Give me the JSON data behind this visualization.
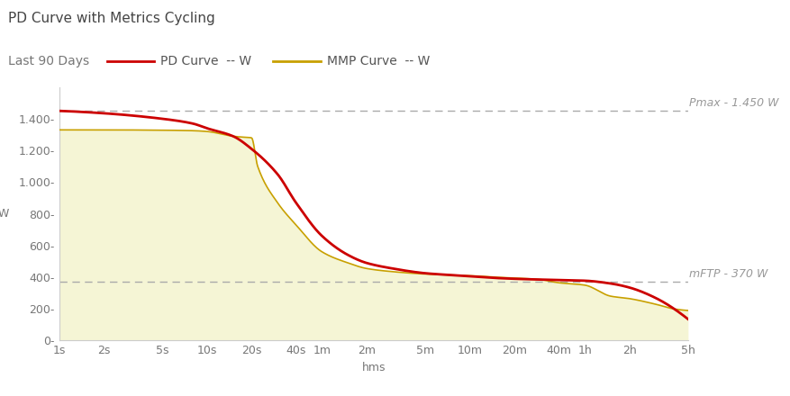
{
  "title": "PD Curve with Metrics Cycling",
  "subtitle": "Last 90 Days",
  "legend_pd": "PD Curve  -- W",
  "legend_mmp": "MMP Curve  -- W",
  "xlabel": "hms",
  "ylabel": "W",
  "pmax_label": "Pmax - 1.450 W",
  "pmax_value": 1450,
  "mftp_label": "mFTP - 370 W",
  "mftp_value": 370,
  "ylim": [
    0,
    1600
  ],
  "yticks": [
    0,
    200,
    400,
    600,
    800,
    1000,
    1200,
    1400
  ],
  "ytick_labels": [
    "0-",
    "200-",
    "400-",
    "600-",
    "800-",
    "1.000-",
    "1.200-",
    "1.400-"
  ],
  "xtick_positions": [
    1,
    2,
    5,
    10,
    20,
    40,
    60,
    120,
    300,
    600,
    1200,
    2400,
    3600,
    7200,
    18000
  ],
  "xtick_labels": [
    "1s",
    "2s",
    "5s",
    "10s",
    "20s",
    "40s",
    "1m",
    "2m",
    "5m",
    "10m",
    "20m",
    "40m",
    "1h",
    "2h",
    "5h"
  ],
  "pd_color": "#cc0000",
  "mmp_color": "#c8a000",
  "fill_color": "#f5f5d5",
  "pmax_line_color": "#aaaaaa",
  "mftp_line_color": "#aaaaaa",
  "background_color": "#ffffff",
  "title_fontsize": 11,
  "subtitle_fontsize": 10,
  "label_fontsize": 9,
  "tick_fontsize": 9,
  "annotation_fontsize": 9,
  "t_pd": [
    1,
    2,
    5,
    8,
    10,
    15,
    20,
    30,
    40,
    60,
    90,
    120,
    180,
    300,
    420,
    600,
    900,
    1200,
    1800,
    2400,
    3600,
    5400,
    7200,
    10800,
    18000
  ],
  "pd_vals": [
    1450,
    1435,
    1400,
    1370,
    1340,
    1290,
    1210,
    1050,
    870,
    660,
    540,
    490,
    455,
    425,
    415,
    405,
    395,
    390,
    385,
    382,
    378,
    360,
    335,
    270,
    135
  ],
  "t_mmp": [
    1,
    2,
    5,
    8,
    10,
    15,
    17,
    20,
    22,
    30,
    40,
    60,
    90,
    120,
    180,
    300,
    420,
    600,
    900,
    1200,
    1800,
    2400,
    3600,
    5400,
    7200,
    10800,
    14400,
    18000
  ],
  "mmp_vals": [
    1330,
    1330,
    1328,
    1325,
    1320,
    1290,
    1285,
    1280,
    1100,
    870,
    730,
    560,
    490,
    455,
    435,
    420,
    415,
    410,
    400,
    395,
    385,
    365,
    350,
    280,
    265,
    230,
    200,
    190
  ]
}
